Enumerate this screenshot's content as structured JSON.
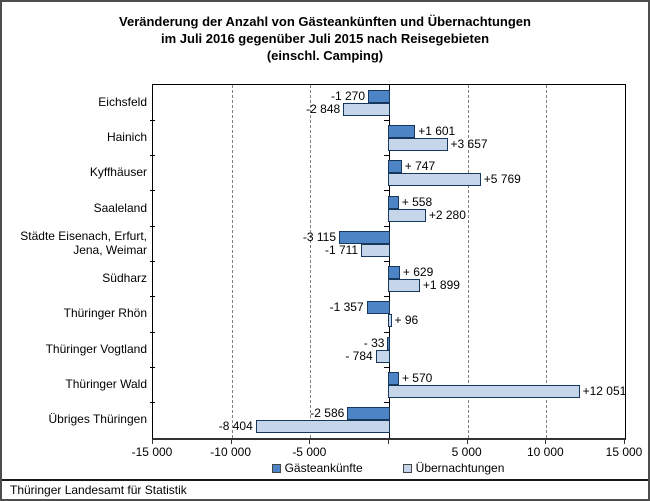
{
  "title": {
    "line1": "Veränderung der Anzahl von Gästeankünften und Übernachtungen",
    "line2": "im Juli 2016 gegenüber Juli 2015 nach Reisegebieten",
    "line3": "(einschl. Camping)"
  },
  "chart_data": {
    "type": "bar",
    "orientation": "horizontal",
    "title": "Veränderung der Anzahl von Gästeankünften und Übernachtungen im Juli 2016 gegenüber Juli 2015 nach Reisegebieten (einschl. Camping)",
    "categories": [
      "Eichsfeld",
      "Hainich",
      "Kyffhäuser",
      "Saaleland",
      "Städte Eisenach, Erfurt, Jena, Weimar",
      "Südharz",
      "Thüringer Rhön",
      "Thüringer Vogtland",
      "Thüringer Wald",
      "Übriges Thüringen"
    ],
    "series": [
      {
        "name": "Gästeankünfte",
        "color": "#4C84C6",
        "border_color": "#17375D",
        "values": [
          -1270,
          1601,
          747,
          558,
          -3115,
          629,
          -1357,
          -33,
          570,
          -2586
        ],
        "labels": [
          "-1 270",
          "+1 601",
          "+ 747",
          "+ 558",
          "-3 115",
          "+ 629",
          "-1 357",
          "- 33",
          "+ 570",
          "-2 586"
        ]
      },
      {
        "name": "Übernachtungen",
        "color": "#C5D5EA",
        "border_color": "#17375D",
        "values": [
          -2848,
          3657,
          5769,
          2280,
          -1711,
          1899,
          96,
          -784,
          12051,
          -8404
        ],
        "labels": [
          "-2 848",
          "+3 657",
          "+5 769",
          "+2 280",
          "-1 711",
          "+1 899",
          "+ 96",
          "- 784",
          "+12 051",
          "-8 404"
        ]
      }
    ],
    "xlim": [
      -15000,
      15000
    ],
    "x_ticks": [
      {
        "value": -15000,
        "label": "-15 000"
      },
      {
        "value": -10000,
        "label": "-10 000"
      },
      {
        "value": -5000,
        "label": "-5 000"
      },
      {
        "value": 0,
        "label": ""
      },
      {
        "value": 5000,
        "label": "5 000"
      },
      {
        "value": 10000,
        "label": "10 000"
      },
      {
        "value": 15000,
        "label": "15 000"
      }
    ],
    "gridlines": {
      "style": "dashed",
      "interval": 5000
    },
    "legend_position": "bottom"
  },
  "footer": "Thüringer Landesamt für Statistik"
}
